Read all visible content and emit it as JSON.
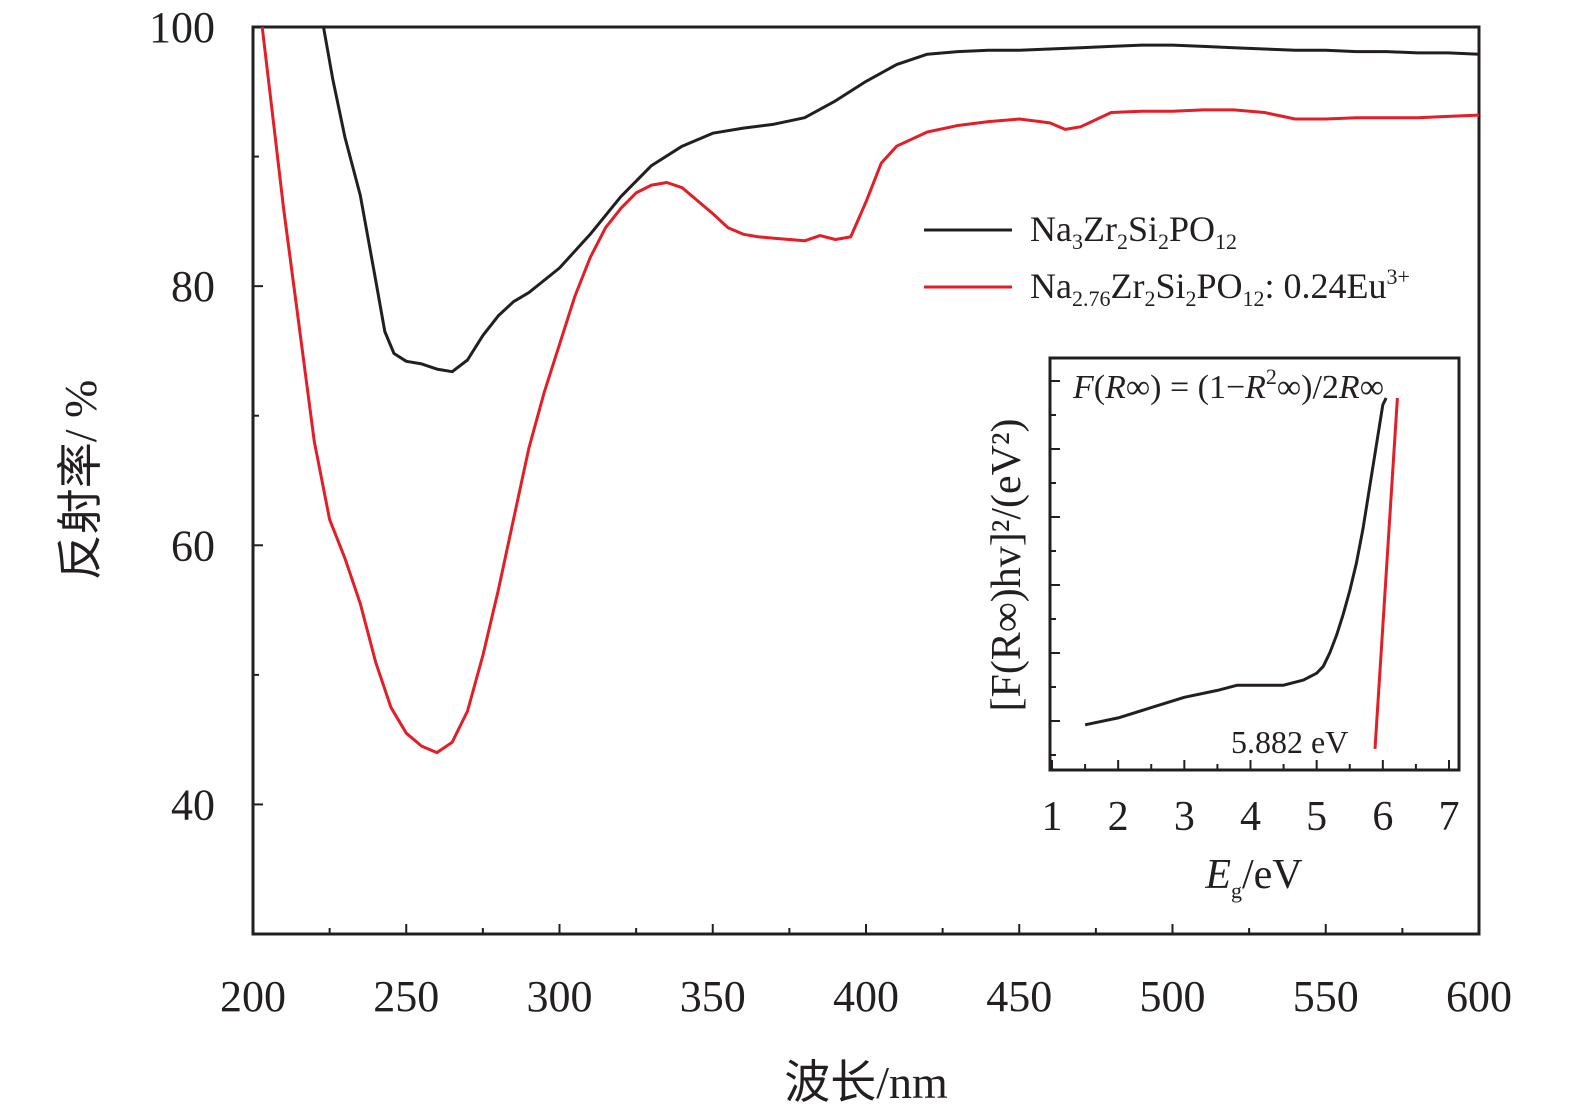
{
  "chart_data": [
    {
      "type": "line",
      "xlabel": "波长/nm",
      "ylabel": "反射率/ %",
      "xlim": [
        200,
        600
      ],
      "ylim": [
        30,
        100
      ],
      "x_ticks": [
        "200",
        "250",
        "300",
        "350",
        "400",
        "450",
        "500",
        "550",
        "600"
      ],
      "y_ticks": [
        "40",
        "60",
        "80",
        "100"
      ],
      "legend_position": "right",
      "series": [
        {
          "name": "Na3Zr2Si2PO12",
          "label_parts": [
            "Na",
            "3",
            "Zr",
            "2",
            "Si",
            "2",
            "PO",
            "12",
            ""
          ],
          "color": "#231f20",
          "x": [
            223,
            226,
            230,
            235,
            240,
            243,
            246,
            250,
            255,
            260,
            265,
            270,
            275,
            280,
            285,
            290,
            300,
            310,
            320,
            330,
            340,
            350,
            360,
            370,
            380,
            390,
            400,
            410,
            420,
            430,
            440,
            450,
            460,
            470,
            480,
            490,
            500,
            510,
            520,
            530,
            540,
            550,
            560,
            570,
            580,
            590,
            600
          ],
          "y": [
            100,
            96,
            91.5,
            87,
            80.5,
            76.5,
            74.8,
            74.2,
            74.0,
            73.6,
            73.4,
            74.3,
            76.2,
            77.7,
            78.8,
            79.5,
            81.4,
            84.0,
            86.9,
            89.3,
            90.8,
            91.8,
            92.2,
            92.5,
            93.0,
            94.3,
            95.8,
            97.1,
            97.9,
            98.1,
            98.2,
            98.2,
            98.3,
            98.4,
            98.5,
            98.6,
            98.6,
            98.5,
            98.4,
            98.3,
            98.2,
            98.2,
            98.1,
            98.1,
            98.0,
            98.0,
            97.9
          ]
        },
        {
          "name": "Na2.76Zr2Si2PO12: 0.24Eu3+",
          "label_parts": [
            "Na",
            "2.76",
            "Zr",
            "2",
            "Si",
            "2",
            "PO",
            "12",
            ": 0.24Eu",
            "3+"
          ],
          "color": "#e21e26",
          "x": [
            203,
            206,
            210,
            215,
            220,
            225,
            230,
            235,
            240,
            245,
            250,
            255,
            260,
            265,
            270,
            275,
            280,
            285,
            290,
            295,
            300,
            305,
            310,
            315,
            320,
            325,
            330,
            335,
            340,
            345,
            350,
            355,
            360,
            365,
            370,
            375,
            380,
            385,
            390,
            395,
            400,
            405,
            410,
            420,
            430,
            440,
            450,
            460,
            465,
            470,
            480,
            490,
            500,
            510,
            520,
            530,
            540,
            550,
            560,
            570,
            580,
            590,
            600
          ],
          "y": [
            100,
            94,
            86,
            77,
            68,
            62,
            59,
            55.5,
            51,
            47.5,
            45.5,
            44.5,
            44.0,
            44.8,
            47.2,
            51.5,
            56.5,
            62.0,
            67.5,
            71.8,
            75.5,
            79.2,
            82.2,
            84.5,
            86.0,
            87.2,
            87.8,
            88.0,
            87.6,
            86.6,
            85.6,
            84.5,
            84.0,
            83.8,
            83.7,
            83.6,
            83.5,
            83.9,
            83.6,
            83.8,
            86.5,
            89.5,
            90.8,
            91.9,
            92.4,
            92.7,
            92.9,
            92.6,
            92.1,
            92.3,
            93.4,
            93.5,
            93.5,
            93.6,
            93.6,
            93.4,
            92.9,
            92.9,
            93.0,
            93.0,
            93.0,
            93.1,
            93.2
          ]
        }
      ]
    },
    {
      "type": "line",
      "role": "inset",
      "xlabel_symbol": "E",
      "xlabel_sub": "g",
      "xlabel_unit": "/eV",
      "ylabel": "[F(R∞)hv]²/(eV²)",
      "xlim": [
        1,
        7
      ],
      "x_ticks": [
        "1",
        "2",
        "3",
        "4",
        "5",
        "6",
        "7"
      ],
      "formula": "F(R∞) = (1−R²∞)/2R∞",
      "annotation": "5.882 eV",
      "band_gap_eV": 5.882,
      "series": [
        {
          "name": "curve",
          "color": "#231f20",
          "x": [
            1.5,
            2.0,
            2.5,
            3.0,
            3.5,
            3.8,
            4.0,
            4.5,
            4.8,
            5.0,
            5.1,
            5.2,
            5.3,
            5.4,
            5.5,
            5.6,
            5.7,
            5.8,
            5.9,
            6.0,
            6.05
          ],
          "y": [
            0.05,
            0.07,
            0.1,
            0.13,
            0.15,
            0.165,
            0.165,
            0.165,
            0.18,
            0.2,
            0.22,
            0.26,
            0.31,
            0.37,
            0.44,
            0.52,
            0.62,
            0.74,
            0.86,
            0.98,
            1.0
          ]
        },
        {
          "name": "tangent",
          "color": "#e21e26",
          "x": [
            5.882,
            6.22
          ],
          "y": [
            -0.02,
            1.0
          ]
        }
      ]
    }
  ]
}
